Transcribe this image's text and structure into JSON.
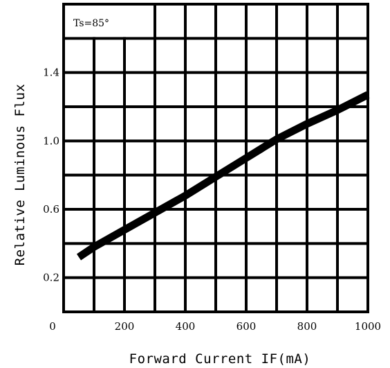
{
  "chart_data": {
    "type": "line",
    "title": "",
    "xlabel": "Forward Current IF(mA)",
    "ylabel": "Relative Luminous Flux",
    "annotation": "Ts=85°",
    "xlim": [
      0,
      1000
    ],
    "ylim": [
      0,
      1.8
    ],
    "xticks": [
      0,
      200,
      400,
      600,
      800,
      1000
    ],
    "xtick_labels": [
      "0",
      "200",
      "400",
      "600",
      "800",
      "1000"
    ],
    "yticks": [
      0.2,
      0.6,
      1.0,
      1.4
    ],
    "ytick_labels": [
      "0.2",
      "0.6",
      "1.0",
      "1.4"
    ],
    "grid": true,
    "series": [
      {
        "x": [
          50,
          100,
          200,
          300,
          400,
          500,
          600,
          700,
          800,
          900,
          1000
        ],
        "y": [
          0.32,
          0.38,
          0.48,
          0.58,
          0.68,
          0.79,
          0.9,
          1.01,
          1.1,
          1.18,
          1.27
        ]
      }
    ],
    "colors": {
      "line": "#000000",
      "grid": "#000000",
      "background": "#ffffff"
    }
  }
}
